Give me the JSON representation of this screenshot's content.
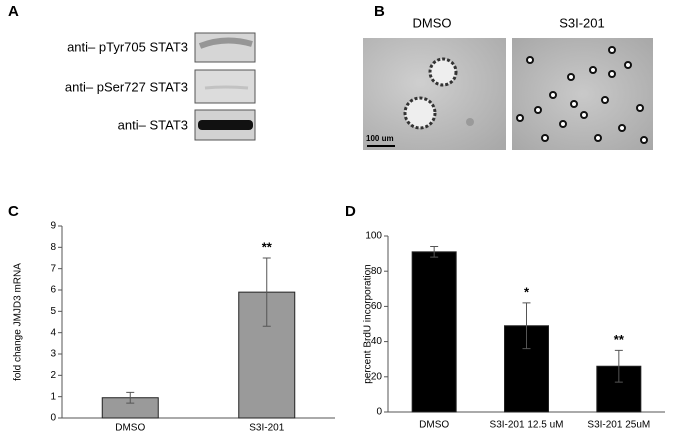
{
  "panels": {
    "a": {
      "label": "A",
      "blot_labels": [
        "anti– pTyr705 STAT3",
        "anti– pSer727 STAT3",
        "anti– STAT3"
      ]
    },
    "b": {
      "label": "B",
      "image_labels": [
        "DMSO",
        "S3I-201"
      ],
      "scale_bar": "100 um"
    },
    "c": {
      "label": "C"
    },
    "d": {
      "label": "D"
    }
  },
  "chart_data": [
    {
      "type": "bar",
      "y_label": "fold change JMJD3 mRNA",
      "categories": [
        "DMSO",
        "S3I-201"
      ],
      "values": [
        0.95,
        5.9
      ],
      "errors": [
        0.25,
        1.6
      ],
      "value_annotations": [
        null,
        "**"
      ],
      "color": "#9a9a9a",
      "ylim": [
        0,
        9
      ],
      "yticks": [
        0,
        1,
        2,
        3,
        4,
        5,
        6,
        7,
        8,
        9
      ]
    },
    {
      "type": "bar",
      "y_label": "percent BrdU incorporation",
      "categories": [
        "DMSO",
        "S3I-201 12.5 uM",
        "S3I-201 25uM"
      ],
      "values": [
        91,
        49,
        26
      ],
      "errors": [
        3,
        13,
        9
      ],
      "value_annotations": [
        null,
        "*",
        "**"
      ],
      "color": "#000000",
      "ylim": [
        0,
        100
      ],
      "yticks": [
        0,
        20,
        40,
        60,
        80,
        100
      ]
    }
  ]
}
